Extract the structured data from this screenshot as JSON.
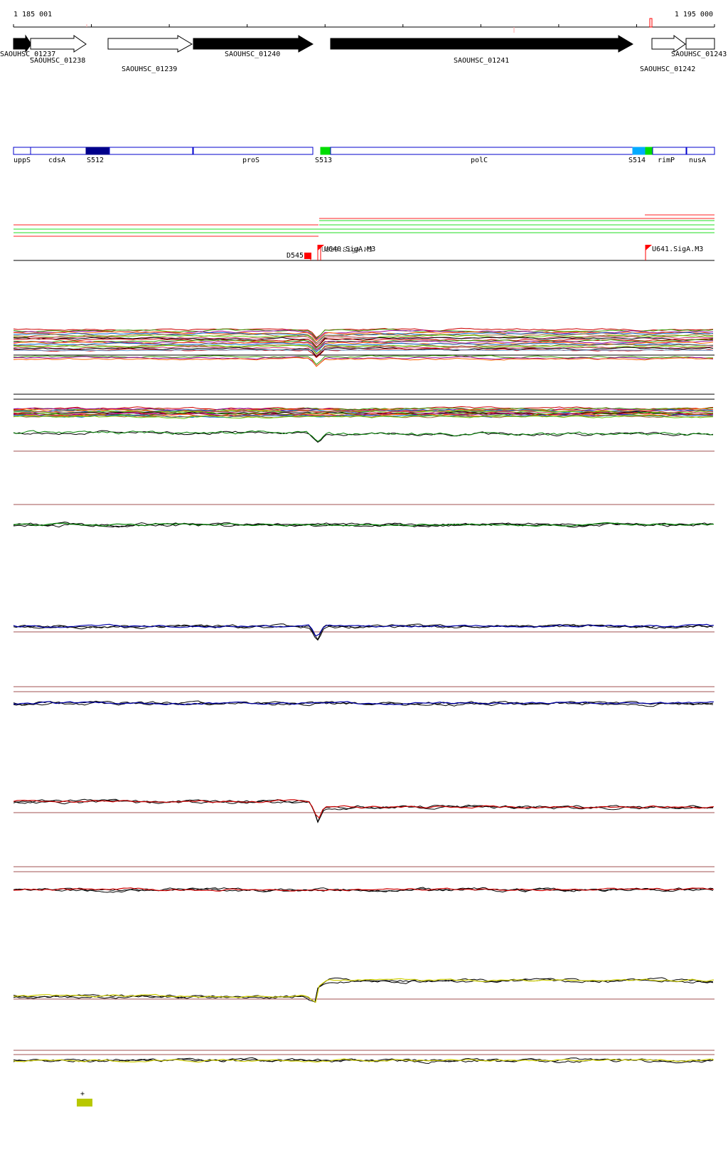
{
  "ruler": {
    "start_label": "1 185 001",
    "end_label": "1 195 000",
    "start": 1185001,
    "end": 1195000,
    "tick_count": 9
  },
  "genes": [
    {
      "id": "g1237",
      "label": "SAOUHSC_01237",
      "filled": true,
      "label_row": 0
    },
    {
      "id": "g1238",
      "label": "SAOUHSC_01238",
      "filled": false,
      "label_row": 1
    },
    {
      "id": "g1239",
      "label": "SAOUHSC_01239",
      "filled": false,
      "label_row": 2
    },
    {
      "id": "g1240",
      "label": "SAOUHSC_01240",
      "filled": true,
      "label_row": 0
    },
    {
      "id": "g1241",
      "label": "SAOUHSC_01241",
      "filled": true,
      "label_row": 1
    },
    {
      "id": "g1242",
      "label": "SAOUHSC_01242",
      "filled": false,
      "label_row": 2
    },
    {
      "id": "g1243",
      "label": "SAOUHSC_01243",
      "filled": false,
      "label_row": 0
    }
  ],
  "segments": [
    {
      "id": "uppS",
      "label": "uppS",
      "type": "gene"
    },
    {
      "id": "cdsA",
      "label": "cdsA",
      "type": "gene"
    },
    {
      "id": "S512",
      "label": "S512",
      "type": "region",
      "color": "#00008b"
    },
    {
      "id": "proS",
      "label": "proS",
      "type": "gene"
    },
    {
      "id": "S513",
      "label": "S513",
      "type": "region",
      "color": "#00dd00"
    },
    {
      "id": "polC",
      "label": "polC",
      "type": "gene"
    },
    {
      "id": "S514",
      "label": "S514",
      "type": "region",
      "color": "#00aaff"
    },
    {
      "id": "rimP",
      "label": "rimP",
      "type": "gene"
    },
    {
      "id": "nusA",
      "label": "nusA",
      "type": "gene"
    }
  ],
  "promoters": [
    {
      "id": "d545",
      "label": "D545",
      "color": "#ff0000"
    },
    {
      "id": "u640a",
      "label": "U640.SigA.M3",
      "color": "#ff0000"
    },
    {
      "id": "u640b",
      "label": "U639.SigA.M3",
      "color": "#ff0000"
    },
    {
      "id": "u641",
      "label": "U641.SigA.M3",
      "color": "#ff0000"
    }
  ],
  "tracks": [
    {
      "id": "multi-condition",
      "colors": [
        "#cc0000",
        "#339900",
        "#990099",
        "#ff6600",
        "#0066cc",
        "#996633",
        "#66cc00",
        "#cc3366",
        "#000000"
      ]
    },
    {
      "id": "expression-1",
      "color": "#008000"
    },
    {
      "id": "expression-2",
      "color": "#008000"
    },
    {
      "id": "expression-3",
      "color": "#0000aa"
    },
    {
      "id": "expression-4",
      "color": "#0000aa"
    },
    {
      "id": "expression-5",
      "color": "#cc0000"
    },
    {
      "id": "expression-6",
      "color": "#cc0000"
    },
    {
      "id": "expression-7",
      "color": "#cccc00"
    },
    {
      "id": "expression-8",
      "color": "#cccc00"
    }
  ],
  "legend": {
    "symbol": "+",
    "color": "#b8c800"
  }
}
